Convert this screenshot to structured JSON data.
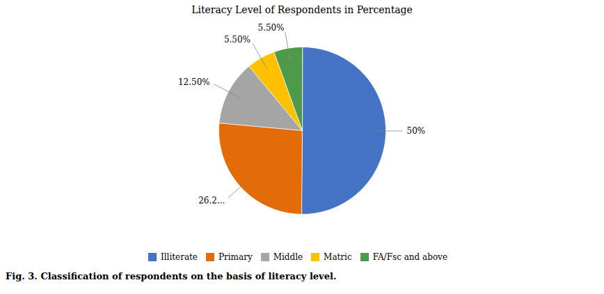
{
  "chart_data": {
    "type": "pie",
    "title": "Literacy  Level  of Respondents in Percentage",
    "caption": "Fig. 3. Classification of respondents on the basis of literacy level.",
    "categories": [
      "Illiterate",
      "Primary",
      "Middle",
      "Matric",
      "FA/Fsc and above"
    ],
    "values": [
      50.0,
      26.25,
      12.5,
      5.5,
      5.5
    ],
    "value_labels": [
      "50%",
      "26.2...",
      "12.50%",
      "5.50%",
      "5.50%"
    ],
    "colors": [
      "#4472C4",
      "#E36C09",
      "#A5A5A5",
      "#FFC000",
      "#4E9A4A"
    ],
    "data_labels": true,
    "legend": "bottom"
  }
}
